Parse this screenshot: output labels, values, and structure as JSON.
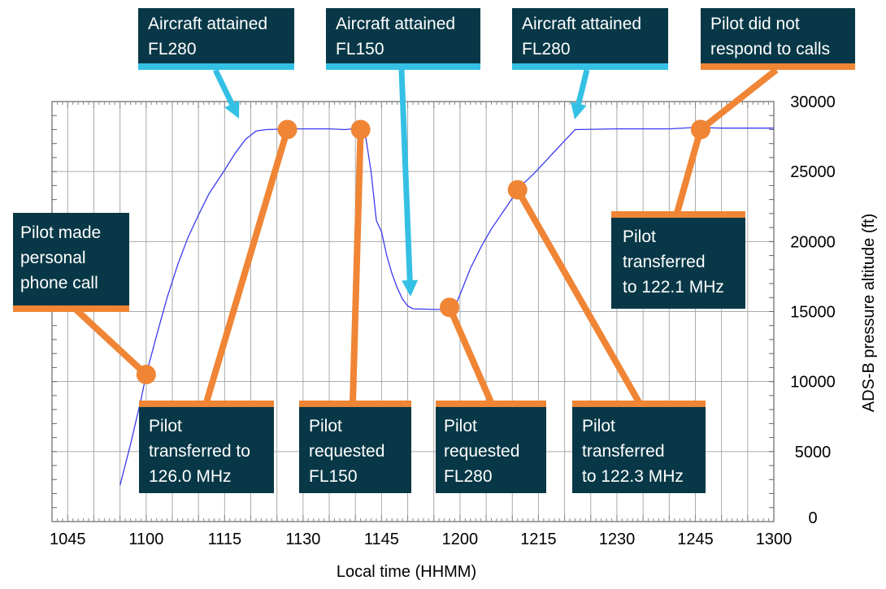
{
  "colors": {
    "line": "#3a3af0",
    "marker": "#ef8535",
    "box": "#083847",
    "cyan": "#34c0e4",
    "grid": "#aaaaaa"
  },
  "chart_data": {
    "type": "line",
    "title": "",
    "xlabel": "Local time (HHMM)",
    "ylabel": "ADS-B pressure altitude (ft)",
    "x_unit": "minutes",
    "x_ticks": [
      "1045",
      "1100",
      "1115",
      "1130",
      "1145",
      "1200",
      "1215",
      "1230",
      "1245",
      "1300"
    ],
    "y_ticks": [
      "0",
      "5000",
      "10000",
      "15000",
      "20000",
      "25000",
      "30000"
    ],
    "xlim": [
      "1042",
      "1300"
    ],
    "ylim": [
      0,
      30000
    ],
    "grid": true,
    "series": [
      {
        "points": [
          [
            "1055",
            2600
          ],
          [
            "1057",
            5500
          ],
          [
            "1059",
            8700
          ],
          [
            "1100",
            10500
          ],
          [
            "1102",
            13300
          ],
          [
            "1104",
            16000
          ],
          [
            "1106",
            18300
          ],
          [
            "1108",
            20300
          ],
          [
            "1110",
            21900
          ],
          [
            "1112",
            23400
          ],
          [
            "1115",
            25100
          ],
          [
            "1117",
            26300
          ],
          [
            "1119",
            27300
          ],
          [
            "1121",
            27900
          ],
          [
            "1123",
            28000
          ],
          [
            "1127",
            28050
          ],
          [
            "1130",
            28050
          ],
          [
            "1135",
            28050
          ],
          [
            "1138",
            28000
          ],
          [
            "1141",
            28100
          ],
          [
            "1142",
            27400
          ],
          [
            "1143",
            25000
          ],
          [
            "1144",
            21500
          ],
          [
            "1145",
            20700
          ],
          [
            "1146",
            19000
          ],
          [
            "1147",
            17700
          ],
          [
            "1148",
            16700
          ],
          [
            "1149",
            15900
          ],
          [
            "1150",
            15400
          ],
          [
            "1151",
            15200
          ],
          [
            "1155",
            15150
          ],
          [
            "1158",
            15150
          ],
          [
            "1159",
            15300
          ],
          [
            "1200",
            16200
          ],
          [
            "1202",
            18100
          ],
          [
            "1204",
            19600
          ],
          [
            "1206",
            20900
          ],
          [
            "1208",
            22000
          ],
          [
            "1210",
            23100
          ],
          [
            "1212",
            24100
          ],
          [
            "1214",
            24800
          ],
          [
            "1216",
            25600
          ],
          [
            "1218",
            26400
          ],
          [
            "1220",
            27200
          ],
          [
            "1222",
            28000
          ],
          [
            "1230",
            28050
          ],
          [
            "1240",
            28050
          ],
          [
            "1245",
            28150
          ],
          [
            "1250",
            28100
          ],
          [
            "1255",
            28100
          ],
          [
            "1300",
            28100
          ]
        ]
      }
    ],
    "events": [
      {
        "time": "1100",
        "altitude": 10500,
        "lines": [
          "Pilot made",
          "personal",
          "phone call"
        ]
      },
      {
        "time": "1127",
        "altitude": 28000,
        "lines": [
          "Pilot",
          "transferred to",
          "126.0 MHz"
        ]
      },
      {
        "time": "1141",
        "altitude": 28000,
        "lines": [
          "Pilot",
          "requested",
          "FL150"
        ]
      },
      {
        "time": "1158",
        "altitude": 15300,
        "lines": [
          "Pilot",
          "requested",
          "FL280"
        ]
      },
      {
        "time": "1211",
        "altitude": 23700,
        "lines": [
          "Pilot",
          "transferred",
          "to 122.3 MHz"
        ]
      },
      {
        "time": "1246",
        "altitude": 28000,
        "lines": [
          "Pilot",
          "transferred",
          "to 122.1 MHz"
        ]
      }
    ],
    "annotations": [
      {
        "lines": [
          "Aircraft attained",
          "FL280"
        ]
      },
      {
        "lines": [
          "Aircraft attained",
          "FL150"
        ]
      },
      {
        "lines": [
          "Aircraft attained",
          "FL280"
        ]
      },
      {
        "lines": [
          "Pilot did not",
          "respond to calls"
        ]
      }
    ]
  }
}
